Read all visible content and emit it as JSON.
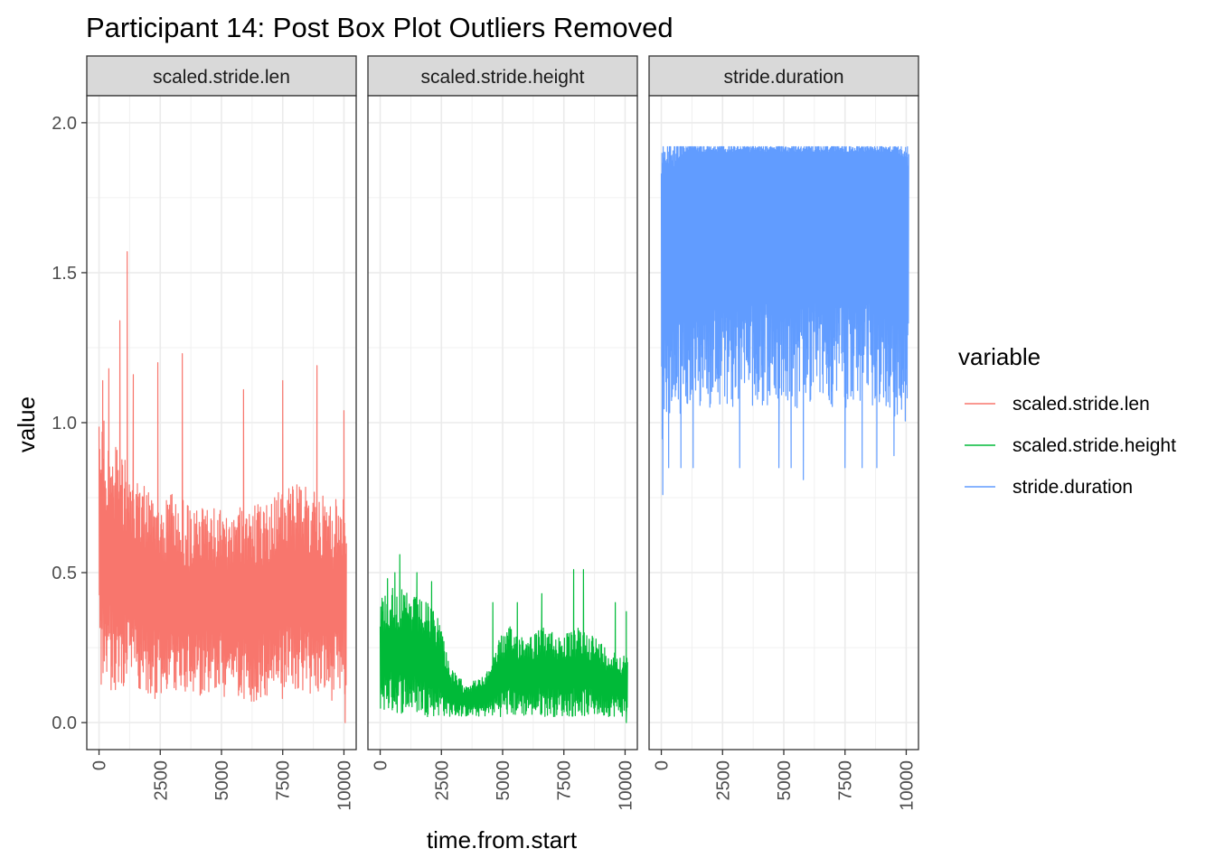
{
  "chart_data": {
    "type": "line",
    "title": "Participant 14: Post Box Plot Outliers Removed",
    "xlabel": "time.from.start",
    "ylabel": "value",
    "xlim": [
      -500,
      10500
    ],
    "ylim": [
      -0.09,
      2.09
    ],
    "x_ticks": [
      0,
      2500,
      5000,
      7500,
      10000
    ],
    "x_tick_labels": [
      "0",
      "2500",
      "5000",
      "7500",
      "10000"
    ],
    "y_ticks": [
      0.0,
      0.5,
      1.0,
      1.5,
      2.0
    ],
    "y_tick_labels": [
      "0.0",
      "0.5",
      "1.0",
      "1.5",
      "2.0"
    ],
    "grid": true,
    "legend": {
      "title": "variable",
      "placement": "right"
    },
    "panels": [
      {
        "strip_label": "scaled.stride.len",
        "series": "scaled.stride.len",
        "color": "#F8766D",
        "x_range": [
          0,
          10100
        ],
        "band_low": [
          0.12,
          0.1,
          0.09,
          0.09,
          0.08,
          0.08,
          0.08,
          0.09,
          0.08,
          0.09,
          0.09,
          0.08,
          0.07,
          0.07,
          0.06,
          0.07,
          0.08,
          0.08,
          0.08,
          0.08,
          0.07,
          0.06
        ],
        "band_high": [
          1.05,
          0.95,
          0.9,
          0.85,
          0.8,
          0.75,
          0.78,
          0.75,
          0.7,
          0.72,
          0.72,
          0.7,
          0.72,
          0.75,
          0.75,
          0.78,
          0.78,
          0.8,
          0.78,
          0.76,
          0.74,
          0.8
        ],
        "peaks": [
          {
            "x": 150,
            "y": 1.14
          },
          {
            "x": 400,
            "y": 1.18
          },
          {
            "x": 850,
            "y": 1.34
          },
          {
            "x": 1150,
            "y": 1.57
          },
          {
            "x": 1400,
            "y": 1.16
          },
          {
            "x": 2400,
            "y": 1.2
          },
          {
            "x": 3400,
            "y": 1.23
          },
          {
            "x": 5900,
            "y": 1.11
          },
          {
            "x": 7500,
            "y": 1.14
          },
          {
            "x": 8900,
            "y": 1.19
          },
          {
            "x": 10000,
            "y": 1.04
          }
        ],
        "min_point": {
          "x": 10050,
          "y": 0.0
        }
      },
      {
        "strip_label": "scaled.stride.height",
        "series": "scaled.stride.height",
        "color": "#00BA38",
        "x_range": [
          0,
          10100
        ],
        "band_low": [
          0.04,
          0.03,
          0.03,
          0.03,
          0.02,
          0.02,
          0.02,
          0.02,
          0.02,
          0.02,
          0.02,
          0.02,
          0.02,
          0.02,
          0.02,
          0.02,
          0.02,
          0.02,
          0.02,
          0.02,
          0.02,
          0.02
        ],
        "band_high": [
          0.42,
          0.46,
          0.44,
          0.42,
          0.4,
          0.36,
          0.18,
          0.14,
          0.14,
          0.16,
          0.28,
          0.32,
          0.3,
          0.3,
          0.32,
          0.3,
          0.3,
          0.32,
          0.3,
          0.26,
          0.24,
          0.22
        ],
        "peaks": [
          {
            "x": 300,
            "y": 0.48
          },
          {
            "x": 600,
            "y": 0.5
          },
          {
            "x": 800,
            "y": 0.56
          },
          {
            "x": 1500,
            "y": 0.5
          },
          {
            "x": 2100,
            "y": 0.47
          },
          {
            "x": 4600,
            "y": 0.4
          },
          {
            "x": 5600,
            "y": 0.4
          },
          {
            "x": 6600,
            "y": 0.43
          },
          {
            "x": 7900,
            "y": 0.51
          },
          {
            "x": 8300,
            "y": 0.51
          },
          {
            "x": 9600,
            "y": 0.4
          },
          {
            "x": 10050,
            "y": 0.37
          }
        ],
        "min_point": {
          "x": 10050,
          "y": 0.0
        }
      },
      {
        "strip_label": "stride.duration",
        "series": "stride.duration",
        "color": "#619CFF",
        "x_range": [
          0,
          10100
        ],
        "band_low": [
          0.9,
          1.0,
          1.05,
          1.05,
          1.05,
          1.05,
          1.05,
          1.05,
          1.05,
          1.05,
          1.05,
          1.05,
          1.05,
          1.05,
          1.05,
          1.05,
          1.05,
          1.05,
          1.05,
          1.05,
          1.0,
          1.0
        ],
        "band_high": [
          1.8,
          1.85,
          1.9,
          1.9,
          1.9,
          1.9,
          1.9,
          1.9,
          1.9,
          1.9,
          1.9,
          1.9,
          1.9,
          1.9,
          1.9,
          1.9,
          1.9,
          1.9,
          1.9,
          1.9,
          1.9,
          1.85
        ],
        "cap": 1.92,
        "dips": [
          {
            "x": 60,
            "y": 0.76
          },
          {
            "x": 300,
            "y": 0.85
          },
          {
            "x": 800,
            "y": 0.85
          },
          {
            "x": 1300,
            "y": 0.85
          },
          {
            "x": 3200,
            "y": 0.85
          },
          {
            "x": 4800,
            "y": 0.85
          },
          {
            "x": 5300,
            "y": 0.85
          },
          {
            "x": 5800,
            "y": 0.81
          },
          {
            "x": 7500,
            "y": 0.85
          },
          {
            "x": 8200,
            "y": 0.85
          },
          {
            "x": 8800,
            "y": 0.85
          },
          {
            "x": 9500,
            "y": 0.89
          }
        ]
      }
    ]
  }
}
